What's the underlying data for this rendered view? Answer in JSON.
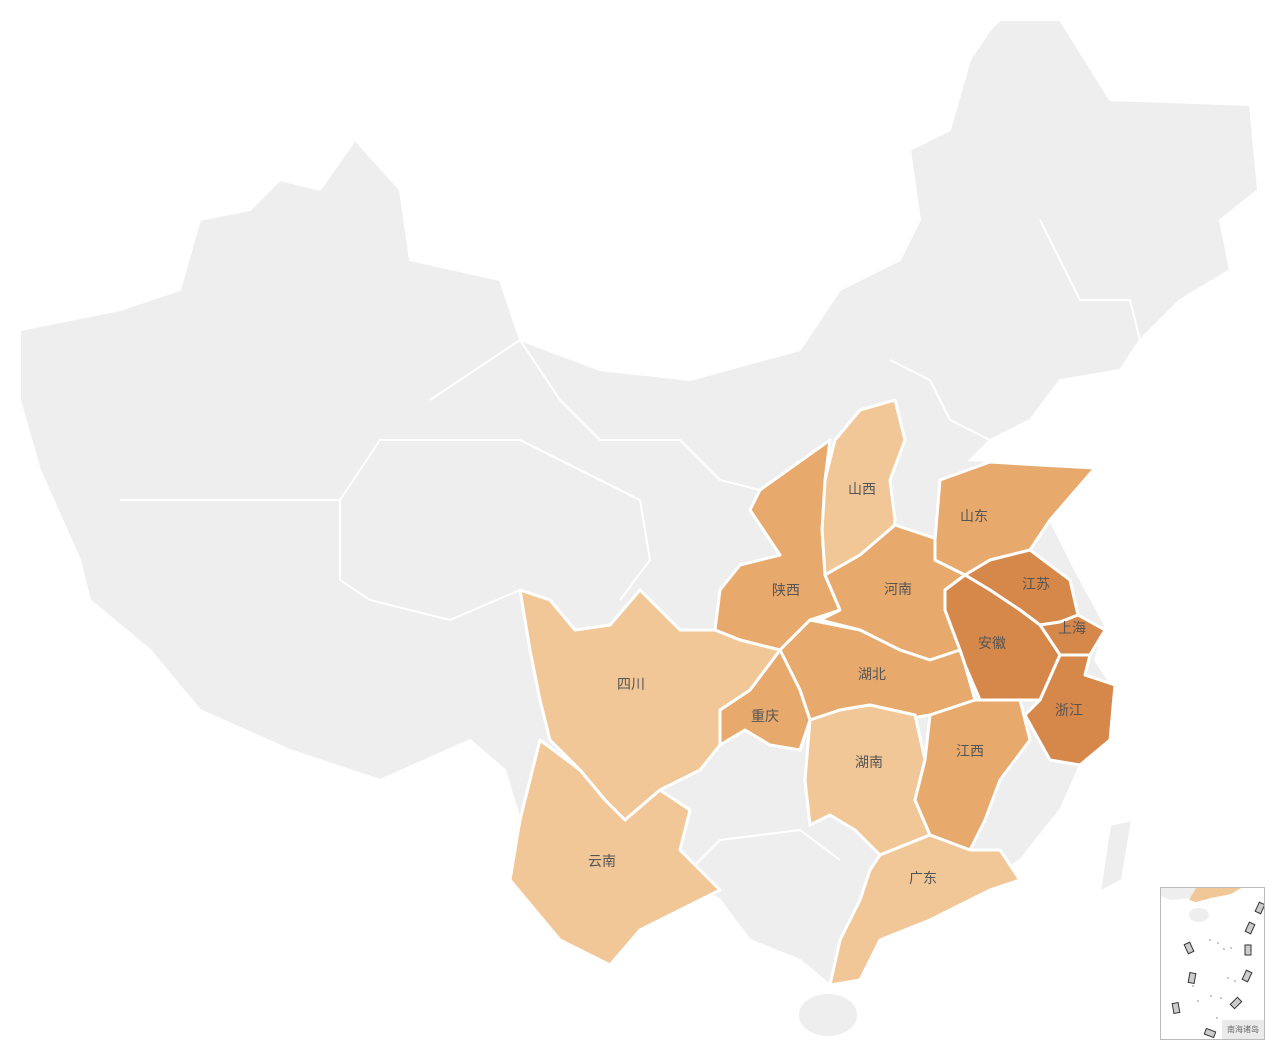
{
  "colors": {
    "high": "#d6874a",
    "mid": "#e8a96c",
    "low": "#f2c797",
    "none": "#eeeeee",
    "border": "#ffffff"
  },
  "provinces": [
    {
      "name": "山西",
      "tier": "low"
    },
    {
      "name": "陕西",
      "tier": "mid"
    },
    {
      "name": "河南",
      "tier": "mid"
    },
    {
      "name": "山东",
      "tier": "mid"
    },
    {
      "name": "江苏",
      "tier": "high"
    },
    {
      "name": "上海",
      "tier": "high"
    },
    {
      "name": "安徽",
      "tier": "high"
    },
    {
      "name": "浙江",
      "tier": "high"
    },
    {
      "name": "湖北",
      "tier": "mid"
    },
    {
      "name": "重庆",
      "tier": "mid"
    },
    {
      "name": "湖南",
      "tier": "low"
    },
    {
      "name": "江西",
      "tier": "mid"
    },
    {
      "name": "四川",
      "tier": "low"
    },
    {
      "name": "云南",
      "tier": "low"
    },
    {
      "name": "广东",
      "tier": "low"
    }
  ],
  "inset": {
    "title": "南海诸岛"
  }
}
